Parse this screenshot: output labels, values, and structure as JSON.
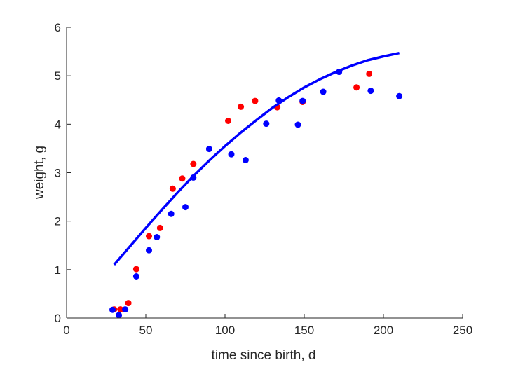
{
  "chart_data": {
    "type": "scatter",
    "title": "",
    "xlabel": "time since birth, d",
    "ylabel": "weight, g",
    "xlim": [
      0,
      250
    ],
    "ylim": [
      0,
      6
    ],
    "xticks": [
      0,
      50,
      100,
      150,
      200,
      250
    ],
    "yticks": [
      0,
      1,
      2,
      3,
      4,
      5,
      6
    ],
    "grid": false,
    "series": [
      {
        "color": "#ff0000",
        "marker": "dot",
        "points": [
          [
            30,
            0.18
          ],
          [
            34,
            0.18
          ],
          [
            39,
            0.31
          ],
          [
            44,
            1.01
          ],
          [
            52,
            1.69
          ],
          [
            59,
            1.86
          ],
          [
            67,
            2.67
          ],
          [
            73,
            2.88
          ],
          [
            80,
            3.18
          ],
          [
            102,
            4.07
          ],
          [
            110,
            4.36
          ],
          [
            119,
            4.48
          ],
          [
            133,
            4.35
          ],
          [
            149,
            4.46
          ],
          [
            183,
            4.76
          ],
          [
            191,
            5.04
          ]
        ]
      },
      {
        "color": "#0000ff",
        "marker": "dot",
        "points": [
          [
            29,
            0.17
          ],
          [
            33,
            0.06
          ],
          [
            37,
            0.18
          ],
          [
            44,
            0.86
          ],
          [
            52,
            1.4
          ],
          [
            57,
            1.67
          ],
          [
            66,
            2.15
          ],
          [
            75,
            2.29
          ],
          [
            80,
            2.9
          ],
          [
            90,
            3.49
          ],
          [
            104,
            3.38
          ],
          [
            113,
            3.26
          ],
          [
            126,
            4.01
          ],
          [
            134,
            4.49
          ],
          [
            146,
            3.99
          ],
          [
            149,
            4.48
          ],
          [
            162,
            4.67
          ],
          [
            172,
            5.08
          ],
          [
            192,
            4.69
          ],
          [
            210,
            4.58
          ]
        ]
      },
      {
        "color": "#0000ff",
        "marker": "line",
        "points": [
          [
            30,
            1.1
          ],
          [
            40,
            1.48
          ],
          [
            50,
            1.86
          ],
          [
            60,
            2.23
          ],
          [
            70,
            2.59
          ],
          [
            80,
            2.93
          ],
          [
            90,
            3.25
          ],
          [
            100,
            3.55
          ],
          [
            110,
            3.83
          ],
          [
            120,
            4.09
          ],
          [
            130,
            4.34
          ],
          [
            140,
            4.56
          ],
          [
            150,
            4.76
          ],
          [
            160,
            4.93
          ],
          [
            170,
            5.08
          ],
          [
            180,
            5.21
          ],
          [
            190,
            5.32
          ],
          [
            200,
            5.4
          ],
          [
            210,
            5.47
          ]
        ]
      }
    ]
  }
}
